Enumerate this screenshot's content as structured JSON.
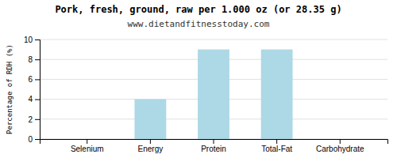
{
  "chart_data": {
    "type": "bar",
    "title": "Pork, fresh, ground, raw per 1.000 oz (or 28.35 g)",
    "subtitle": "www.dietandfitnesstoday.com",
    "ylabel": "Percentage of RDH (%)",
    "categories": [
      "Selenium",
      "Energy",
      "Protein",
      "Total-Fat",
      "Carbohydrate"
    ],
    "values": [
      0,
      4,
      9,
      9,
      0
    ],
    "color": "#add8e6",
    "ylim": [
      0,
      10
    ],
    "yticks": [
      0,
      2,
      4,
      6,
      8,
      10
    ],
    "grid": true
  }
}
